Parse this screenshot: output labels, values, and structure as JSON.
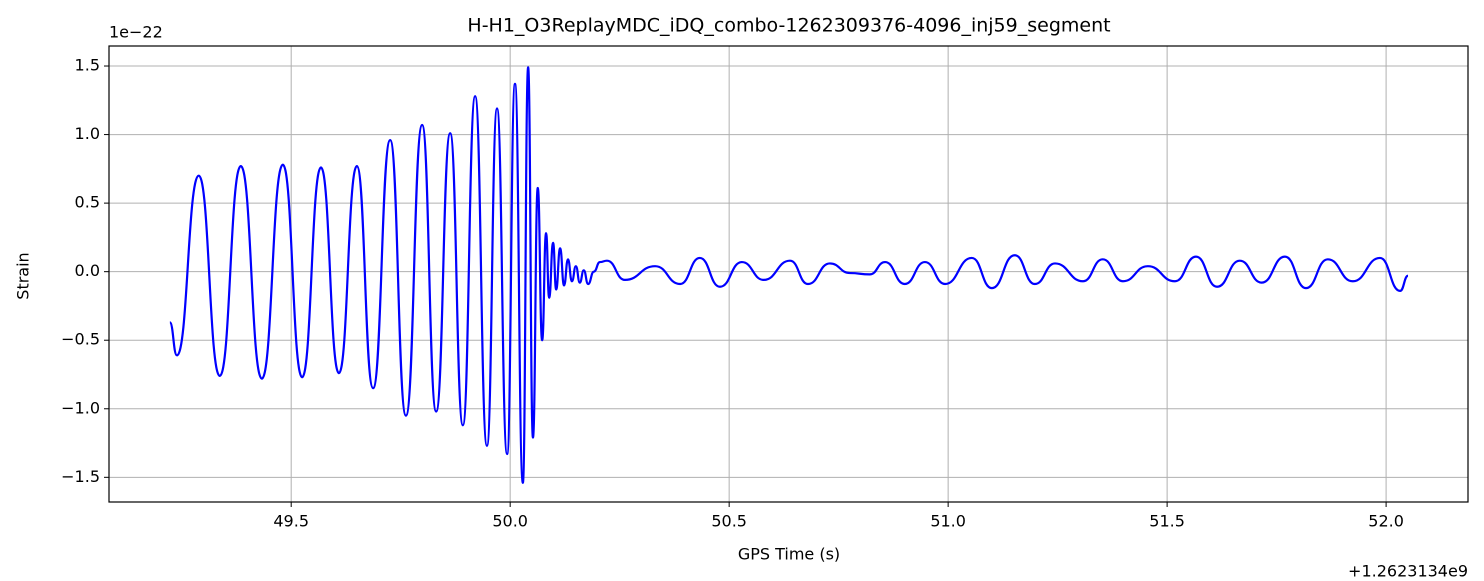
{
  "chart_data": {
    "type": "line",
    "title": "H-H1_O3ReplayMDC_iDQ_combo-1262309376-4096_inj59_segment",
    "xlabel": "GPS Time (s)",
    "ylabel": "Strain",
    "x_offset_label": "+1.2623134e9",
    "y_offset_label": "1e−22",
    "xlim": [
      49.084,
      52.187
    ],
    "ylim": [
      -1.68,
      1.646
    ],
    "xticks": [
      49.5,
      {
        "value": 50.0,
        "label": "50.0"
      },
      50.5,
      {
        "value": 51.0,
        "label": "51.0"
      },
      51.5,
      {
        "value": 52.0,
        "label": "52.0"
      }
    ],
    "yticks": [
      {
        "value": -1.5,
        "label": "−1.5"
      },
      {
        "value": -1.0,
        "label": "−1.0"
      },
      {
        "value": -0.5,
        "label": "−0.5"
      },
      {
        "value": 0.0,
        "label": "0.0"
      },
      0.5,
      {
        "value": 1.0,
        "label": "1.0"
      },
      1.5
    ],
    "grid": true,
    "x": [
      49.223,
      49.239,
      49.289,
      49.337,
      49.385,
      49.433,
      49.481,
      49.525,
      49.568,
      49.609,
      49.65,
      49.687,
      49.726,
      49.762,
      49.799,
      49.831,
      49.863,
      49.892,
      49.92,
      49.947,
      49.97,
      49.993,
      50.011,
      50.029,
      50.041,
      50.052,
      50.063,
      50.073,
      50.082,
      50.089,
      50.098,
      50.105,
      50.114,
      50.123,
      50.132,
      50.141,
      50.15,
      50.159,
      50.168,
      50.178,
      50.191,
      50.205,
      50.221,
      50.262,
      50.331,
      50.388,
      50.433,
      50.479,
      50.529,
      50.579,
      50.639,
      50.68,
      50.73,
      50.776,
      50.821,
      50.856,
      50.901,
      50.947,
      50.993,
      51.054,
      51.1,
      51.152,
      51.198,
      51.244,
      51.308,
      51.353,
      51.399,
      51.456,
      51.518,
      51.566,
      51.614,
      51.666,
      51.716,
      51.769,
      51.817,
      51.867,
      51.924,
      51.986,
      52.032,
      52.05
    ],
    "series": [
      {
        "name": "Strain",
        "color": "#0000ff",
        "values": [
          -0.37,
          -0.61,
          0.7,
          -0.76,
          0.77,
          -0.78,
          0.78,
          -0.77,
          0.76,
          -0.74,
          0.77,
          -0.85,
          0.96,
          -1.05,
          1.07,
          -1.02,
          1.01,
          -1.12,
          1.28,
          -1.27,
          1.19,
          -1.33,
          1.37,
          -1.54,
          1.49,
          -1.21,
          0.61,
          -0.5,
          0.28,
          -0.19,
          0.21,
          -0.13,
          0.17,
          -0.1,
          0.09,
          -0.07,
          0.04,
          -0.08,
          0.01,
          -0.09,
          0.0,
          0.07,
          0.08,
          -0.06,
          0.04,
          -0.09,
          0.1,
          -0.11,
          0.07,
          -0.06,
          0.08,
          -0.09,
          0.06,
          -0.01,
          -0.02,
          0.07,
          -0.09,
          0.07,
          -0.09,
          0.1,
          -0.12,
          0.12,
          -0.09,
          0.06,
          -0.07,
          0.09,
          -0.07,
          0.04,
          -0.07,
          0.11,
          -0.11,
          0.08,
          -0.08,
          0.11,
          -0.12,
          0.09,
          -0.07,
          0.1,
          -0.14,
          -0.03
        ]
      }
    ]
  }
}
